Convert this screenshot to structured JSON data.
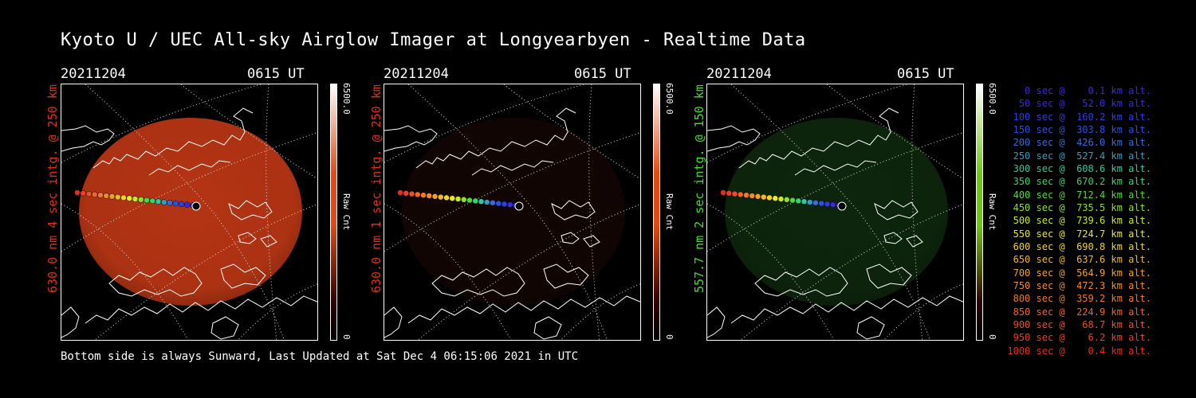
{
  "title": "Kyoto U / UEC All-sky Airglow Imager at Longyearbyen - Realtime Data",
  "footer": "Bottom side is always Sunward, Last Updated at Sat Dec  4 06:15:06 2021 in UTC",
  "panels": [
    {
      "date": "20211204",
      "time": "0615 UT",
      "side_label": "630.0 nm 4 sec intg. @ 250 km",
      "label_color": "#e0301c",
      "cbar_max": "6500.0",
      "cbar_unit": "Raw Cnt",
      "cbar_min": "0",
      "tint": "#c83a16",
      "cbar_top": "#ffffff",
      "cbar_mid": "#e24a12",
      "brightness": 0.9
    },
    {
      "date": "20211204",
      "time": "0615 UT",
      "side_label": "630.0 nm 1 sec intg. @ 250 km",
      "label_color": "#e0301c",
      "cbar_max": "6500.0",
      "cbar_unit": "Raw Cnt",
      "cbar_min": "0",
      "tint": "#3a120c",
      "cbar_top": "#ffffff",
      "cbar_mid": "#e24a12",
      "brightness": 0.3
    },
    {
      "date": "20211204",
      "time": "0615 UT",
      "side_label": "557.7 nm 2 sec intg. @ 150 km",
      "label_color": "#3fe02a",
      "cbar_max": "6500.0",
      "cbar_unit": "Raw Cnt",
      "cbar_min": "0",
      "tint": "#1b4a1a",
      "cbar_top": "#ffffff",
      "cbar_mid": "#6fc80f",
      "brightness": 0.5
    }
  ],
  "legend": [
    {
      "text": "   0 sec @    0.1 km alt.",
      "color": "#3a2bd8"
    },
    {
      "text": "  50 sec @   52.0 km alt.",
      "color": "#3a2bd8"
    },
    {
      "text": " 100 sec @  160.2 km alt.",
      "color": "#2f3ee0"
    },
    {
      "text": " 150 sec @  303.8 km alt.",
      "color": "#2f4fe0"
    },
    {
      "text": " 200 sec @  426.0 km alt.",
      "color": "#3a6ad8"
    },
    {
      "text": " 250 sec @  527.4 km alt.",
      "color": "#2f9ec0"
    },
    {
      "text": " 300 sec @  608.6 km alt.",
      "color": "#2fc8a0"
    },
    {
      "text": " 350 sec @  670.2 km alt.",
      "color": "#3ad26a"
    },
    {
      "text": " 400 sec @  712.4 km alt.",
      "color": "#4fd83a"
    },
    {
      "text": " 450 sec @  735.5 km alt.",
      "color": "#8ee02a"
    },
    {
      "text": " 500 sec @  739.6 km alt.",
      "color": "#c8e82a"
    },
    {
      "text": " 550 sec @  724.7 km alt.",
      "color": "#e8e82a"
    },
    {
      "text": " 600 sec @  690.8 km alt.",
      "color": "#f2d22a"
    },
    {
      "text": " 650 sec @  637.6 km alt.",
      "color": "#f2b82a"
    },
    {
      "text": " 700 sec @  564.9 km alt.",
      "color": "#f0a02a"
    },
    {
      "text": " 750 sec @  472.3 km alt.",
      "color": "#f08a2a"
    },
    {
      "text": " 800 sec @  359.2 km alt.",
      "color": "#f07a2a"
    },
    {
      "text": " 850 sec @  224.9 km alt.",
      "color": "#f0642a"
    },
    {
      "text": " 900 sec @   68.7 km alt.",
      "color": "#e8502a"
    },
    {
      "text": " 950 sec @    6.2 km alt.",
      "color": "#e8402a"
    },
    {
      "text": "1000 sec @    0.4 km alt.",
      "color": "#e0301c"
    }
  ]
}
